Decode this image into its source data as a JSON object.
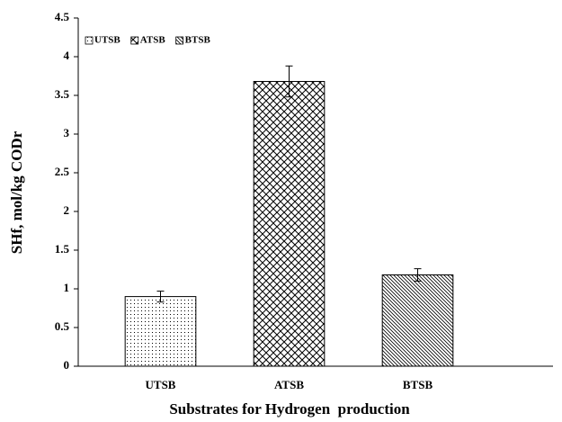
{
  "chart_data": {
    "type": "bar",
    "categories": [
      "UTSB",
      "ATSB",
      "BTSB"
    ],
    "values": [
      0.9,
      3.68,
      1.18
    ],
    "errors": [
      0.07,
      0.2,
      0.08
    ],
    "patterns": [
      "dots",
      "crosshatch",
      "diagonal"
    ],
    "color": "#000000",
    "ylabel": "SHf, mol/kg CODr",
    "xlabel": "Substrates for Hydrogen  production",
    "ylim": [
      0,
      4.5
    ],
    "yticks": [
      0,
      0.5,
      1,
      1.5,
      2,
      2.5,
      3,
      3.5,
      4,
      4.5
    ],
    "legend": "upper left",
    "grid": false
  }
}
